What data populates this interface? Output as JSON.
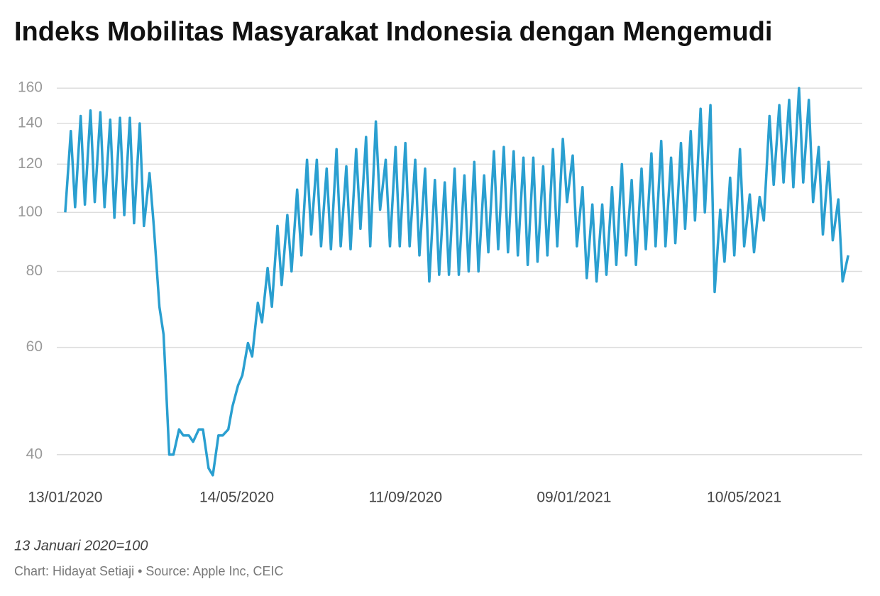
{
  "chart_data": {
    "type": "line",
    "title": "Indeks Mobilitas Masyarakat Indonesia dengan Mengemudi",
    "subtitle": "13 Januari 2020=100",
    "source": "Chart: Hidayat Setiaji • Source: Apple Inc, CEIC",
    "color": "#2a9fd0",
    "log_scale": true,
    "grid": true,
    "ylim": [
      36,
      164
    ],
    "yticks": [
      40,
      60,
      80,
      100,
      120,
      140,
      160
    ],
    "xlim": [
      "07/01/2020",
      "02/08/2021"
    ],
    "xticks": [
      "13/01/2020",
      "14/05/2020",
      "11/09/2020",
      "09/01/2021",
      "10/05/2021"
    ],
    "x": [
      "13/01/2020",
      "17/01/2020",
      "20/01/2020",
      "24/01/2020",
      "27/01/2020",
      "31/01/2020",
      "03/02/2020",
      "07/02/2020",
      "10/02/2020",
      "14/02/2020",
      "17/02/2020",
      "21/02/2020",
      "24/02/2020",
      "28/02/2020",
      "02/03/2020",
      "06/03/2020",
      "09/03/2020",
      "13/03/2020",
      "16/03/2020",
      "20/03/2020",
      "23/03/2020",
      "27/03/2020",
      "30/03/2020",
      "03/04/2020",
      "06/04/2020",
      "10/04/2020",
      "13/04/2020",
      "17/04/2020",
      "20/04/2020",
      "24/04/2020",
      "27/04/2020",
      "01/05/2020",
      "04/05/2020",
      "08/05/2020",
      "11/05/2020",
      "15/05/2020",
      "18/05/2020",
      "22/05/2020",
      "25/05/2020",
      "29/05/2020",
      "01/06/2020",
      "05/06/2020",
      "08/06/2020",
      "12/06/2020",
      "15/06/2020",
      "19/06/2020",
      "22/06/2020",
      "26/06/2020",
      "29/06/2020",
      "03/07/2020",
      "06/07/2020",
      "10/07/2020",
      "13/07/2020",
      "17/07/2020",
      "20/07/2020",
      "24/07/2020",
      "27/07/2020",
      "31/07/2020",
      "03/08/2020",
      "07/08/2020",
      "10/08/2020",
      "14/08/2020",
      "17/08/2020",
      "21/08/2020",
      "24/08/2020",
      "28/08/2020",
      "31/08/2020",
      "04/09/2020",
      "07/09/2020",
      "11/09/2020",
      "14/09/2020",
      "18/09/2020",
      "21/09/2020",
      "25/09/2020",
      "28/09/2020",
      "02/10/2020",
      "05/10/2020",
      "09/10/2020",
      "12/10/2020",
      "16/10/2020",
      "19/10/2020",
      "23/10/2020",
      "26/10/2020",
      "30/10/2020",
      "02/11/2020",
      "06/11/2020",
      "09/11/2020",
      "13/11/2020",
      "16/11/2020",
      "20/11/2020",
      "23/11/2020",
      "27/11/2020",
      "30/11/2020",
      "04/12/2020",
      "07/12/2020",
      "11/12/2020",
      "14/12/2020",
      "18/12/2020",
      "21/12/2020",
      "25/12/2020",
      "28/12/2020",
      "01/01/2021",
      "04/01/2021",
      "08/01/2021",
      "11/01/2021",
      "15/01/2021",
      "18/01/2021",
      "22/01/2021",
      "25/01/2021",
      "29/01/2021",
      "01/02/2021",
      "05/02/2021",
      "08/02/2021",
      "12/02/2021",
      "15/02/2021",
      "19/02/2021",
      "22/02/2021",
      "26/02/2021",
      "01/03/2021",
      "05/03/2021",
      "08/03/2021",
      "12/03/2021",
      "15/03/2021",
      "19/03/2021",
      "22/03/2021",
      "26/03/2021",
      "29/03/2021",
      "02/04/2021",
      "05/04/2021",
      "09/04/2021",
      "12/04/2021",
      "16/04/2021",
      "19/04/2021",
      "23/04/2021",
      "26/04/2021",
      "30/04/2021",
      "03/05/2021",
      "07/05/2021",
      "10/05/2021",
      "14/05/2021",
      "17/05/2021",
      "21/05/2021",
      "24/05/2021",
      "28/05/2021",
      "31/05/2021",
      "04/06/2021",
      "07/06/2021",
      "11/06/2021",
      "14/06/2021",
      "18/06/2021",
      "21/06/2021",
      "25/06/2021",
      "28/06/2021",
      "02/07/2021",
      "05/07/2021",
      "09/07/2021",
      "12/07/2021",
      "16/07/2021",
      "19/07/2021",
      "23/07/2021"
    ],
    "values": [
      100,
      136,
      102,
      144,
      103,
      147,
      104,
      146,
      102,
      142,
      98,
      143,
      99,
      143,
      96,
      140,
      95,
      116,
      95,
      70,
      63,
      40,
      40,
      44,
      43,
      43,
      42,
      44,
      44,
      38,
      37,
      43,
      43,
      44,
      48,
      52,
      54,
      61,
      58,
      71,
      66,
      81,
      70,
      95,
      76,
      99,
      80,
      109,
      85,
      122,
      92,
      122,
      88,
      118,
      87,
      127,
      88,
      119,
      87,
      127,
      94,
      133,
      88,
      141,
      101,
      122,
      88,
      128,
      88,
      130,
      88,
      122,
      85,
      118,
      77,
      113,
      79,
      112,
      79,
      118,
      79,
      115,
      80,
      121,
      80,
      115,
      86,
      126,
      87,
      128,
      86,
      126,
      85,
      123,
      82,
      123,
      83,
      119,
      85,
      127,
      88,
      132,
      104,
      124,
      88,
      110,
      78,
      103,
      77,
      103,
      79,
      110,
      82,
      120,
      85,
      113,
      82,
      118,
      87,
      125,
      88,
      131,
      88,
      123,
      89,
      130,
      94,
      136,
      97,
      148,
      100,
      150,
      74,
      101,
      83,
      114,
      85,
      127,
      88,
      107,
      86,
      106,
      97,
      144,
      111,
      150,
      112,
      153,
      110,
      160,
      112,
      153,
      104,
      128,
      92,
      121,
      90,
      105,
      77,
      85
    ]
  }
}
